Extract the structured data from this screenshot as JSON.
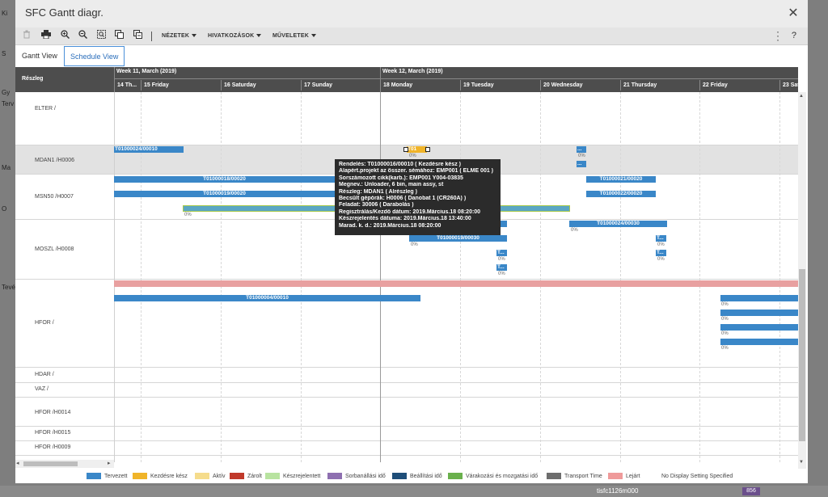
{
  "dialog": {
    "title": "SFC Gantt diagr.",
    "close_glyph": "✕"
  },
  "background": {
    "left_fragments": [
      "Ki",
      "S",
      "Gy",
      "Terv",
      "Ma",
      "O",
      "Tevé"
    ],
    "footer_label": "tisfc1126m000",
    "footer_badge": "856"
  },
  "toolbar": {
    "icons": [
      "trash-icon",
      "print-icon",
      "zoom-in-icon",
      "zoom-out-icon",
      "zoom-fit-icon",
      "copy-icon",
      "paste-icon"
    ],
    "menus": [
      {
        "label": "NÉZETEK"
      },
      {
        "label": "HIVATKOZÁSOK"
      },
      {
        "label": "MŰVELETEK"
      }
    ],
    "help": "?"
  },
  "tabs": [
    {
      "label": "Gantt View",
      "active": false
    },
    {
      "label": "Schedule View",
      "active": true
    }
  ],
  "header": {
    "resource_label": "Részleg",
    "weeks": [
      "Week 11, March (2019)",
      "Week 12, March (2019)"
    ],
    "days": [
      "14 Th...",
      "15 Friday",
      "16 Saturday",
      "17 Sunday",
      "18 Monday",
      "19 Tuesday",
      "20 Wednesday",
      "21 Thursday",
      "22 Friday",
      "23 Sat..."
    ]
  },
  "rows": [
    {
      "label": "ELTER /",
      "shaded": false
    },
    {
      "label": "MDAN1 /H0006",
      "shaded": true
    },
    {
      "label": "MSN50 /H0007",
      "shaded": false
    },
    {
      "label": "MOSZL /H0008",
      "shaded": false
    },
    {
      "label": "HFOR /",
      "shaded": false
    },
    {
      "label": "HDAR /",
      "shaded": false
    },
    {
      "label": "VAZ /",
      "shaded": false
    },
    {
      "label": "HFOR /H0014",
      "shaded": false
    },
    {
      "label": "HFOR /H0015",
      "shaded": false
    },
    {
      "label": "HFOR /H0009",
      "shaded": false
    }
  ],
  "bars": [
    {
      "label": "T01000024/00010",
      "status": "planned",
      "align": "left"
    },
    {
      "label": "T01",
      "status": "ready",
      "align": "left",
      "pct": "0%"
    },
    {
      "label": "...",
      "status": "planned",
      "align": "left",
      "pct": "0%"
    },
    {
      "label": "...",
      "status": "planned",
      "align": "left"
    },
    {
      "label": "T01000018/00020",
      "status": "planned",
      "align": "center"
    },
    {
      "label": "T01000021/00020",
      "status": "planned",
      "align": "center"
    },
    {
      "label": "T01000019/00020",
      "status": "planned",
      "align": "center"
    },
    {
      "label": "T01000022/00020",
      "status": "planned",
      "align": "center"
    },
    {
      "label": "",
      "status": "teal",
      "align": "left",
      "pct": "0%"
    },
    {
      "label": "",
      "status": "planned",
      "align": "left"
    },
    {
      "label": "T01000024/00030",
      "status": "planned",
      "align": "center",
      "pct": "0%"
    },
    {
      "label": "T01000019/00030",
      "status": "planned",
      "align": "center",
      "pct": "0%"
    },
    {
      "label": "T...",
      "status": "planned",
      "align": "left",
      "pct": "0%"
    },
    {
      "label": "T...",
      "status": "planned",
      "align": "left",
      "pct": "0%"
    },
    {
      "label": "T...",
      "status": "planned",
      "align": "left",
      "pct": "0%"
    },
    {
      "label": "T...",
      "status": "planned",
      "align": "left",
      "pct": "0%"
    },
    {
      "label": "",
      "status": "overdue",
      "align": "left"
    },
    {
      "label": "T01000004/00010",
      "status": "planned",
      "align": "center"
    },
    {
      "label": "",
      "status": "planned",
      "align": "left",
      "pct": "0%"
    },
    {
      "label": "",
      "status": "planned",
      "align": "left",
      "pct": "0%"
    },
    {
      "label": "",
      "status": "planned",
      "align": "left",
      "pct": "0%"
    },
    {
      "label": "",
      "status": "planned",
      "align": "left",
      "pct": "0%"
    }
  ],
  "tooltip": {
    "lines": [
      "Rendelés: T01000016/00010 ( Kezdésre kész )",
      "Alapért.projekt az összer. sémához: EMP001 ( ELME 001 )",
      "Sorszámozott cikk(karb.): EMP001 Y004-03835",
      "Megnev.: Unloader, 6 bin, main assy, st",
      "Részleg: MDAN1 ( Alrészleg )",
      "Becsült gépórák: H0006 ( Danobat 1 (CR260A) )",
      "Feladat: 30006 ( Darabolás )",
      "Regisztrálás/Kezdő dátum: 2019.Március.18 08:20:00",
      "Készrejelentés dátuma: 2019.Március.18 13:40:00",
      "Marad. k. d.: 2019.Március.18 08:20:00"
    ]
  },
  "legend": [
    {
      "label": "Tervezett",
      "color": "#3a87c8"
    },
    {
      "label": "Kezdésre kész",
      "color": "#f0b429"
    },
    {
      "label": "Aktív",
      "color": "#f5dc8c"
    },
    {
      "label": "Zárolt",
      "color": "#c0392b"
    },
    {
      "label": "Készrejelentett",
      "color": "#b8e3a0"
    },
    {
      "label": "Sorbanállási idő",
      "color": "#8e6fb0"
    },
    {
      "label": "Beállítási idő",
      "color": "#1f4e79"
    },
    {
      "label": "Várakozási és mozgatási idő",
      "color": "#6ab04c"
    },
    {
      "label": "Transport Time",
      "color": "#6d6d6d"
    },
    {
      "label": "Lejárt",
      "color": "#ef9a9a"
    },
    {
      "label": "No Display Setting Specified",
      "color": ""
    }
  ]
}
